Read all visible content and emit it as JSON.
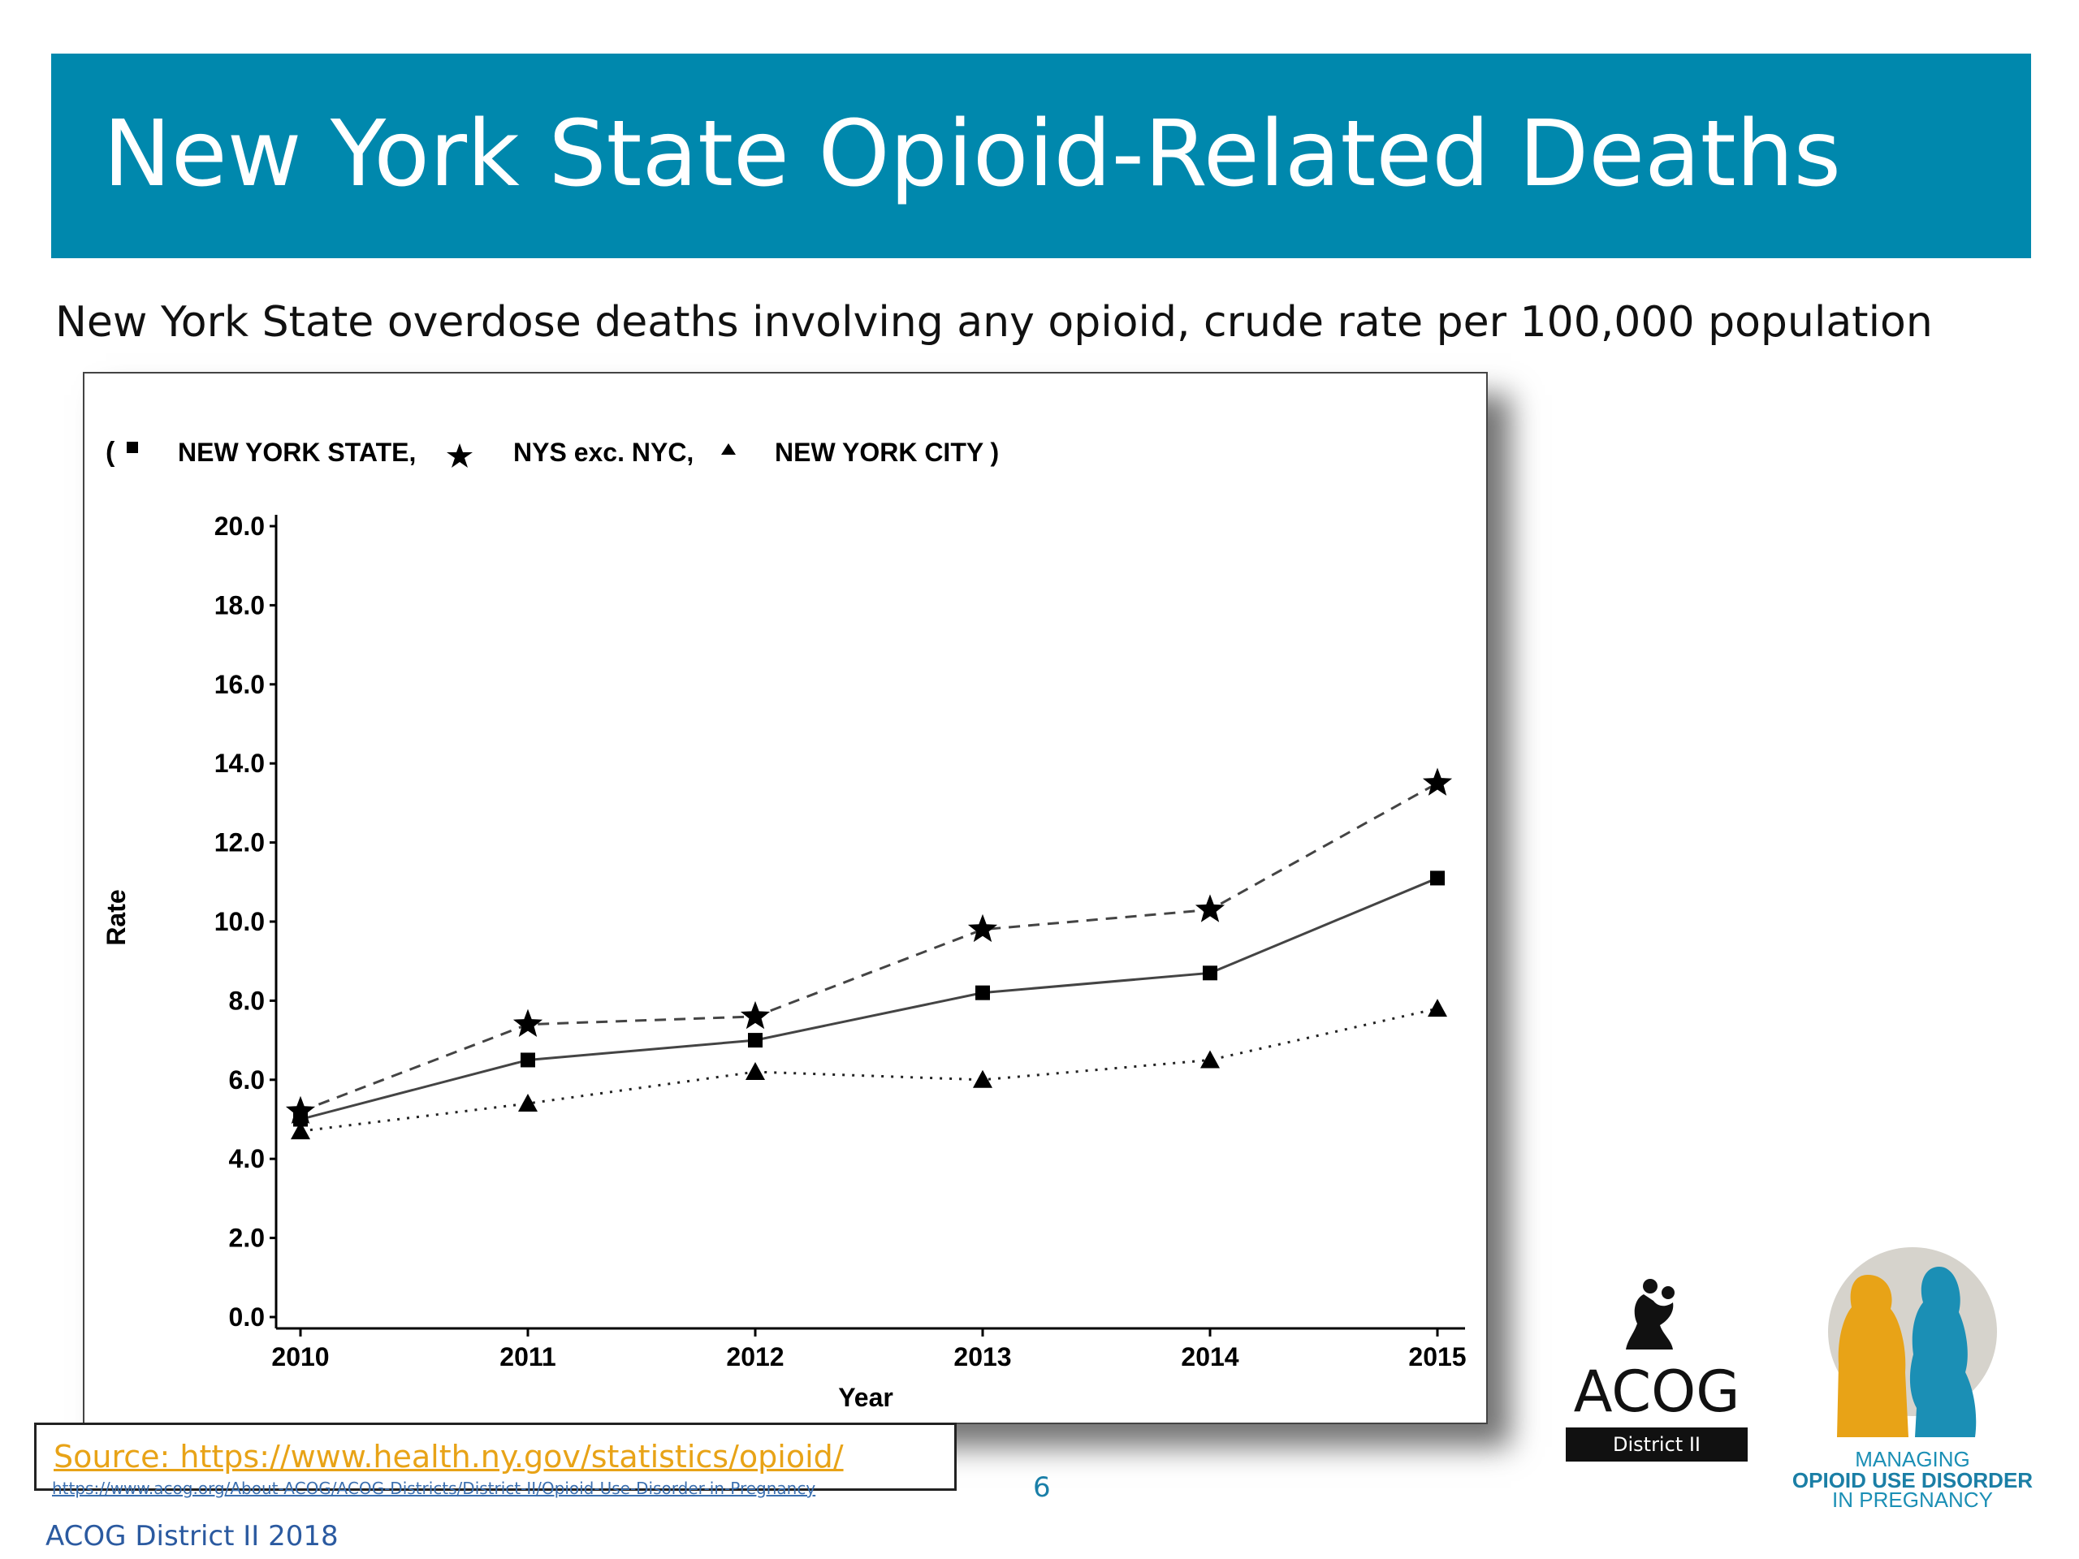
{
  "header": {
    "title": "New York State Opioid-Related Deaths",
    "subtitle": "New York State overdose deaths involving any opioid, crude rate per 100,000 population"
  },
  "chart_data": {
    "type": "line",
    "title": "",
    "xlabel": "Year",
    "ylabel": "Rate",
    "x": [
      2010,
      2011,
      2012,
      2013,
      2014,
      2015
    ],
    "ylim": [
      0,
      20
    ],
    "yticks": [
      "0.0",
      "2.0",
      "4.0",
      "6.0",
      "8.0",
      "10.0",
      "12.0",
      "14.0",
      "16.0",
      "18.0",
      "20.0"
    ],
    "legend_text": {
      "open": "(",
      "series0": "NEW YORK STATE,",
      "series1": "NYS exc. NYC,",
      "series2": "NEW YORK CITY )"
    },
    "legend_position": "top-left",
    "grid": false,
    "series": [
      {
        "name": "NEW YORK STATE",
        "marker": "square",
        "line": "solid",
        "values": [
          5.0,
          6.5,
          7.0,
          8.2,
          8.7,
          11.1
        ]
      },
      {
        "name": "NYS exc. NYC",
        "marker": "star",
        "line": "dashed",
        "values": [
          5.2,
          7.4,
          7.6,
          9.8,
          10.3,
          13.5
        ]
      },
      {
        "name": "NEW YORK CITY",
        "marker": "triangle",
        "line": "dotted",
        "values": [
          4.7,
          5.4,
          6.2,
          6.0,
          6.5,
          7.8
        ]
      }
    ]
  },
  "source": {
    "text": "Source: https://www.health.ny.gov/statistics/opioid/",
    "url": "https://www.acog.org/About-ACOG/ACOG-Districts/District-II/Opioid-Use-Disorder-in-Pregnancy"
  },
  "page_number": "6",
  "footer": "ACOG District II 2018",
  "logos": {
    "acog": {
      "name": "ACOG",
      "subtitle": "District II"
    },
    "mod": {
      "line1": "MANAGING",
      "line2": "OPIOID USE DISORDER",
      "line3": "IN PREGNANCY",
      "colors": [
        "#e8a317",
        "#1b8fb5"
      ]
    }
  }
}
